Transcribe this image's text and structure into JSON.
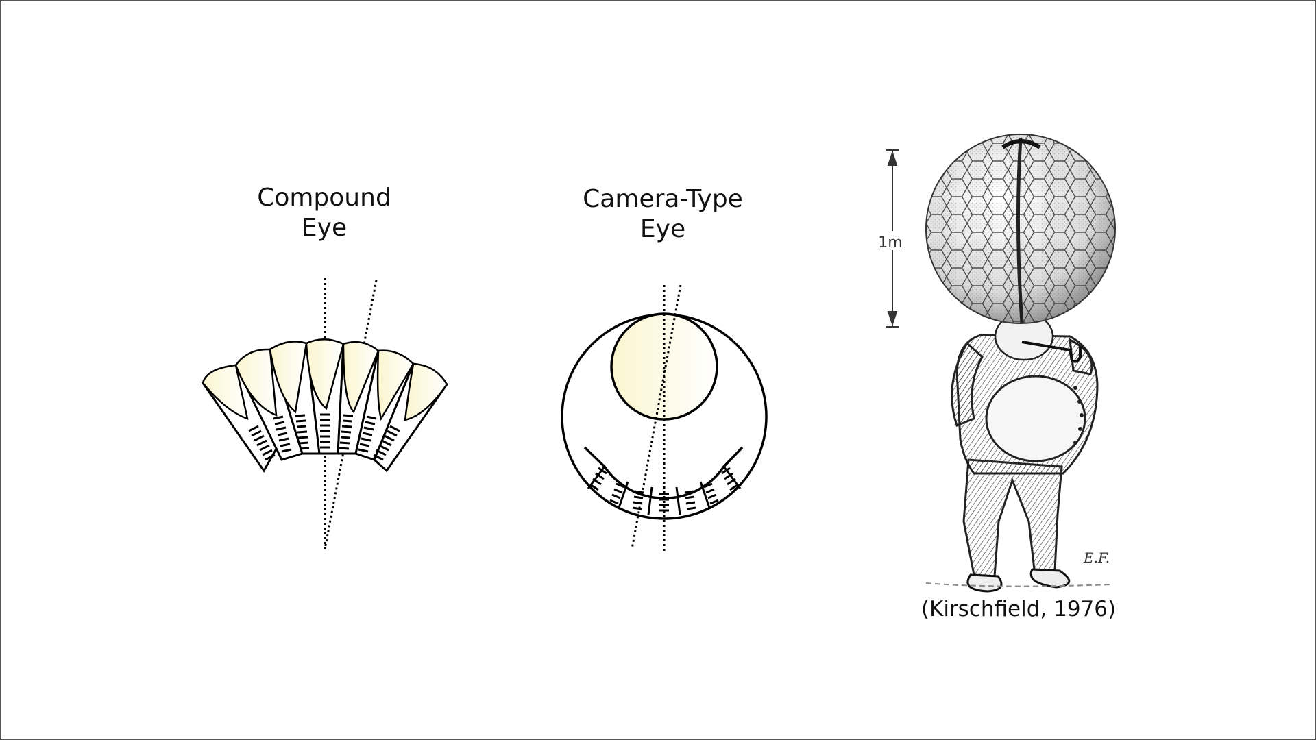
{
  "compound_eye": {
    "title_line1": "Compound",
    "title_line2": "Eye"
  },
  "camera_eye": {
    "title_line1": "Camera-Type",
    "title_line2": "Eye"
  },
  "illustration": {
    "scale_label": "1m",
    "signature": "E.F.",
    "citation": "(Kirschfield, 1976)"
  },
  "colors": {
    "lens_fill": "#fdf7d6",
    "stroke": "#000000",
    "hatch": "#222222"
  }
}
